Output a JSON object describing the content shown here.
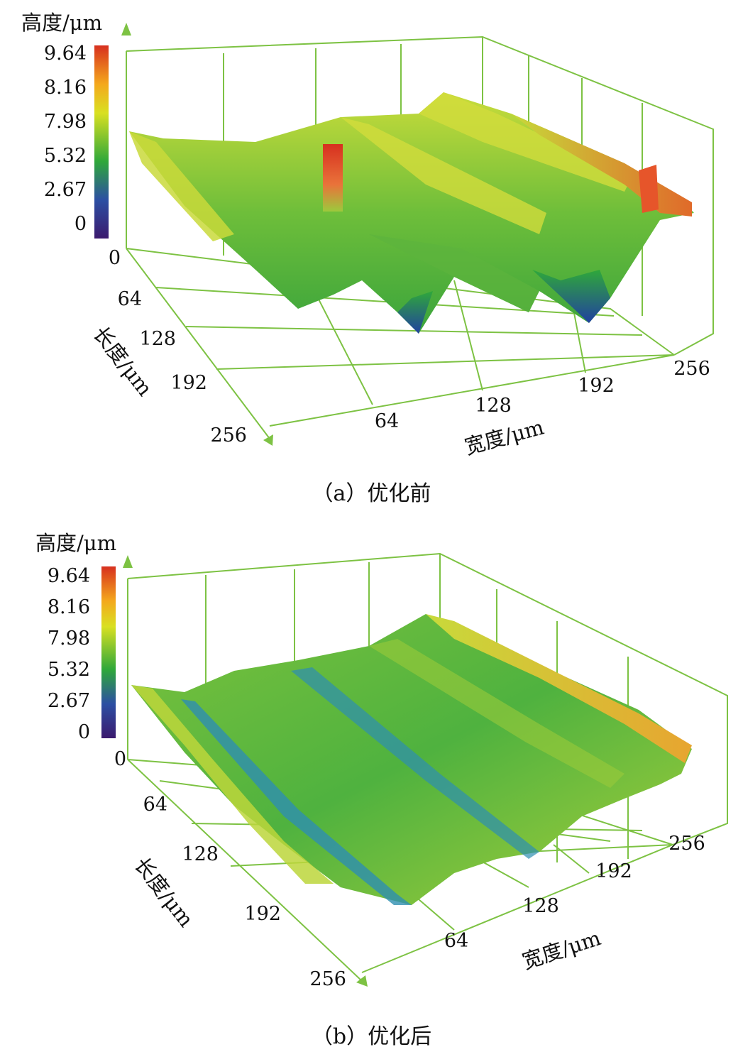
{
  "chart_data": [
    {
      "type": "surface3d",
      "caption": "（a）优化前",
      "zlabel": "高度/μm",
      "xlabel": "宽度/μm",
      "ylabel": "长度/μm",
      "colorbar_ticks": [
        "9.64",
        "8.16",
        "7.98",
        "5.32",
        "2.67",
        "0"
      ],
      "x_ticks": [
        "64",
        "128",
        "192",
        "256"
      ],
      "y_ticks": [
        "0",
        "64",
        "128",
        "192",
        "256"
      ],
      "colors": {
        "low": "#3b1a6e",
        "mid": "#2fa83a",
        "high": "#d7301f",
        "axis": "#7dc243"
      },
      "ridges": 4,
      "spike": {
        "x": 70,
        "y": 30,
        "height": 9.64
      }
    },
    {
      "type": "surface3d",
      "caption": "（b）优化后",
      "zlabel": "高度/μm",
      "xlabel": "宽度/μm",
      "ylabel": "长度/μm",
      "colorbar_ticks": [
        "9.64",
        "8.16",
        "7.98",
        "5.32",
        "2.67",
        "0"
      ],
      "x_ticks": [
        "64",
        "128",
        "192",
        "256"
      ],
      "y_ticks": [
        "0",
        "64",
        "128",
        "192",
        "256"
      ],
      "colors": {
        "low": "#3b1a6e",
        "mid": "#2fa83a",
        "high": "#d7301f",
        "axis": "#7dc243"
      },
      "ridges": 0
    }
  ]
}
